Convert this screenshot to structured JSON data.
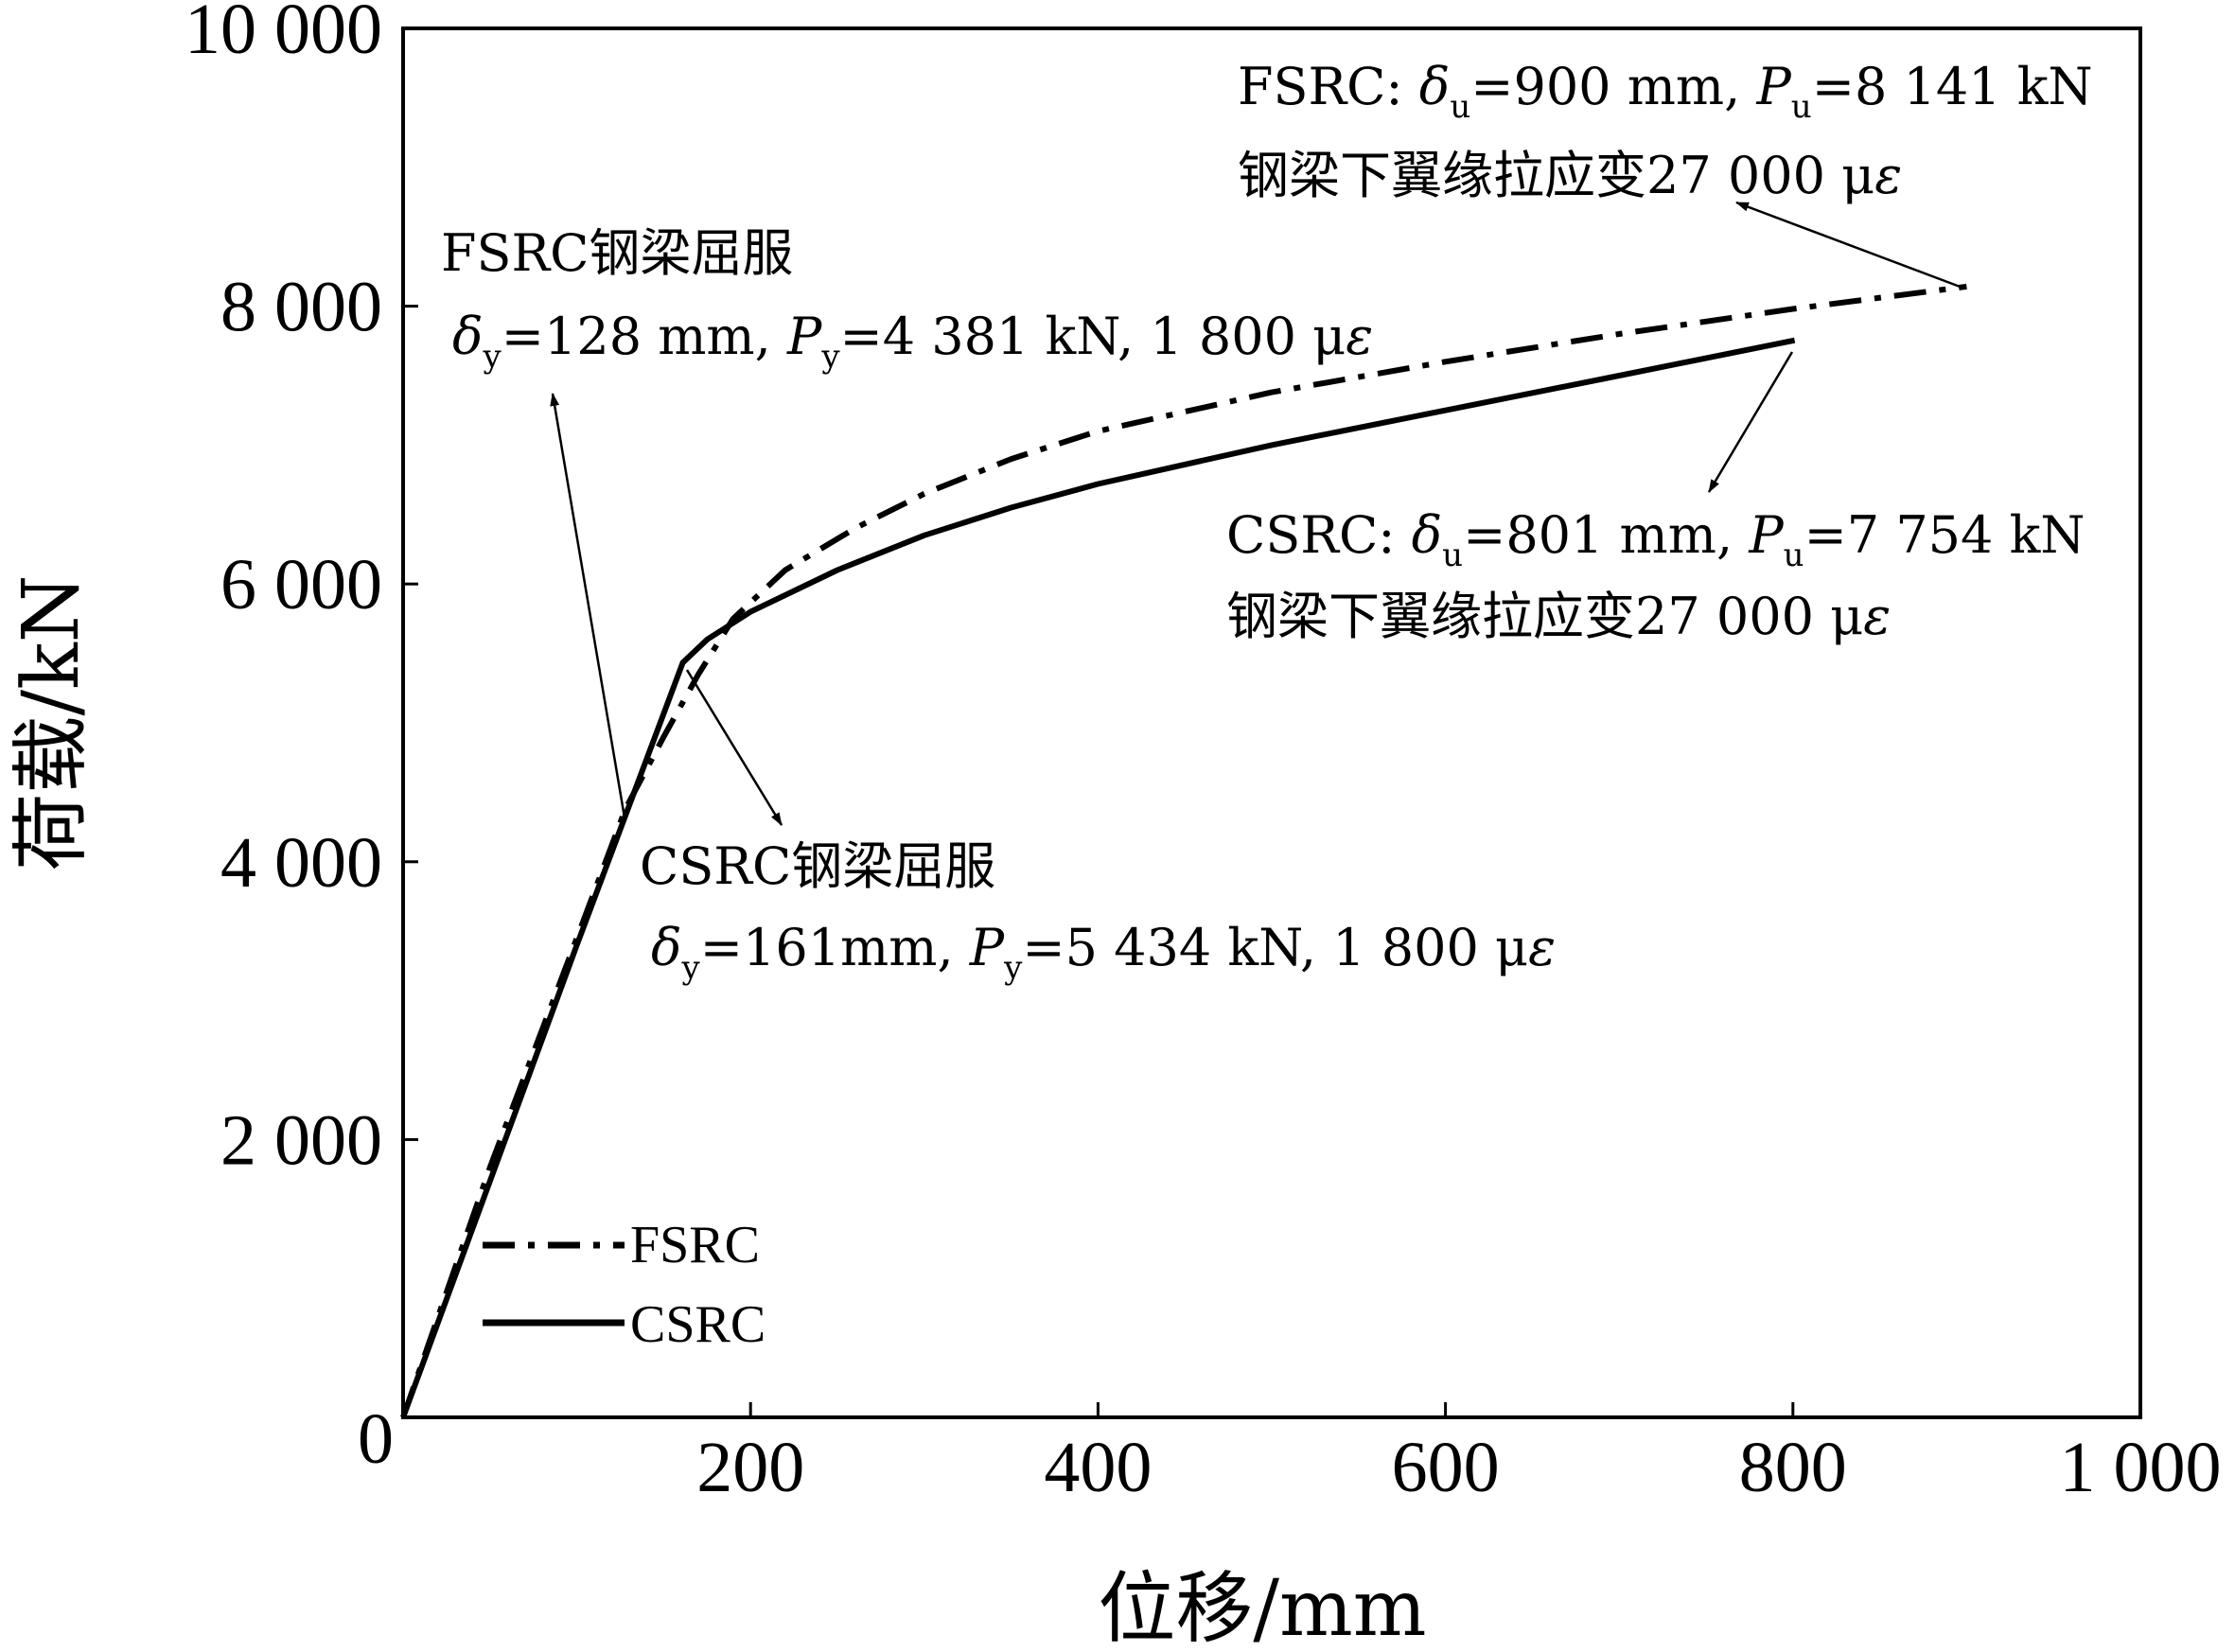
{
  "chart_data": {
    "type": "line",
    "xlabel": "位移/mm",
    "ylabel": "荷载/kN",
    "xlim": [
      0,
      1000
    ],
    "ylim": [
      0,
      10000
    ],
    "xticks": [
      {
        "value": 0,
        "label": "0"
      },
      {
        "value": 200,
        "label": "200"
      },
      {
        "value": 400,
        "label": "400"
      },
      {
        "value": 600,
        "label": "600"
      },
      {
        "value": 800,
        "label": "800"
      },
      {
        "value": 1000,
        "label": "1 000"
      }
    ],
    "yticks": [
      {
        "value": 2000,
        "label": "2 000"
      },
      {
        "value": 4000,
        "label": "4 000"
      },
      {
        "value": 6000,
        "label": "6 000"
      },
      {
        "value": 8000,
        "label": "8 000"
      },
      {
        "value": 10000,
        "label": "10 000"
      }
    ],
    "grid": false,
    "legend_position": "bottom-left",
    "series": [
      {
        "name": "FSRC",
        "style": "dash-dot",
        "color": "#000000",
        "points": [
          [
            0,
            0
          ],
          [
            50,
            1800
          ],
          [
            100,
            3450
          ],
          [
            128,
            4381
          ],
          [
            150,
            4900
          ],
          [
            170,
            5350
          ],
          [
            190,
            5750
          ],
          [
            220,
            6100
          ],
          [
            260,
            6400
          ],
          [
            300,
            6650
          ],
          [
            350,
            6900
          ],
          [
            400,
            7100
          ],
          [
            500,
            7380
          ],
          [
            600,
            7600
          ],
          [
            700,
            7800
          ],
          [
            800,
            7980
          ],
          [
            900,
            8141
          ]
        ]
      },
      {
        "name": "CSRC",
        "style": "solid",
        "color": "#000000",
        "points": [
          [
            0,
            0
          ],
          [
            50,
            1700
          ],
          [
            100,
            3400
          ],
          [
            130,
            4400
          ],
          [
            161,
            5434
          ],
          [
            175,
            5600
          ],
          [
            200,
            5800
          ],
          [
            250,
            6100
          ],
          [
            300,
            6350
          ],
          [
            350,
            6550
          ],
          [
            400,
            6720
          ],
          [
            500,
            7000
          ],
          [
            600,
            7250
          ],
          [
            700,
            7500
          ],
          [
            801,
            7754
          ]
        ]
      }
    ],
    "annotations": [
      {
        "id": "fsrc-ult",
        "lines": [
          "FSRC: δu=900 mm, Pu=8 141 kN",
          "钢梁下翼缘拉应变27 000 με"
        ],
        "point": [
          900,
          8141
        ]
      },
      {
        "id": "fsrc-yield",
        "lines": [
          "FSRC钢梁屈服",
          "δy=128 mm, Py=4 381 kN, 1 800 με"
        ],
        "point": [
          128,
          4381
        ]
      },
      {
        "id": "csrc-ult",
        "lines": [
          "CSRC: δu=801 mm, Pu=7 754 kN",
          "钢梁下翼缘拉应变27 000 με"
        ],
        "point": [
          801,
          7754
        ]
      },
      {
        "id": "csrc-yield",
        "lines": [
          "CSRC钢梁屈服",
          "δy=161mm, Py=5 434 kN, 1 800 με"
        ],
        "point": [
          161,
          5434
        ]
      }
    ]
  },
  "text": {
    "fsrc_ult_l1_pre": "FSRC: ",
    "fsrc_ult_delta": "δ",
    "fsrc_ult_sub_u": "u",
    "fsrc_ult_mid": "=900 mm, ",
    "fsrc_ult_P": "P",
    "fsrc_ult_sub_u2": "u",
    "fsrc_ult_end": "=8 141 kN",
    "fsrc_ult_l2_a": "钢梁下翼缘拉应变27 000 μ",
    "fsrc_ult_l2_eps": "ε",
    "fsrc_yield_l1": "FSRC钢梁屈服",
    "fsrc_yield_delta": "δ",
    "fsrc_yield_sub_y": "y",
    "fsrc_yield_mid": "=128 mm, ",
    "fsrc_yield_P": "P",
    "fsrc_yield_sub_y2": "y",
    "fsrc_yield_end": "=4 381 kN, 1 800 μ",
    "fsrc_yield_eps": "ε",
    "csrc_ult_l1_pre": "CSRC: ",
    "csrc_ult_delta": "δ",
    "csrc_ult_sub_u": "u",
    "csrc_ult_mid": "=801 mm, ",
    "csrc_ult_P": "P",
    "csrc_ult_sub_u2": "u",
    "csrc_ult_end": "=7 754 kN",
    "csrc_ult_l2_a": "钢梁下翼缘拉应变27 000 μ",
    "csrc_ult_l2_eps": "ε",
    "csrc_yield_l1": "CSRC钢梁屈服",
    "csrc_yield_delta": "δ",
    "csrc_yield_sub_y": "y",
    "csrc_yield_mid": "=161mm, ",
    "csrc_yield_P": "P",
    "csrc_yield_sub_y2": "y",
    "csrc_yield_end": "=5 434 kN, 1 800 μ",
    "csrc_yield_eps": "ε",
    "legend_fsrc": "FSRC",
    "legend_csrc": "CSRC"
  }
}
